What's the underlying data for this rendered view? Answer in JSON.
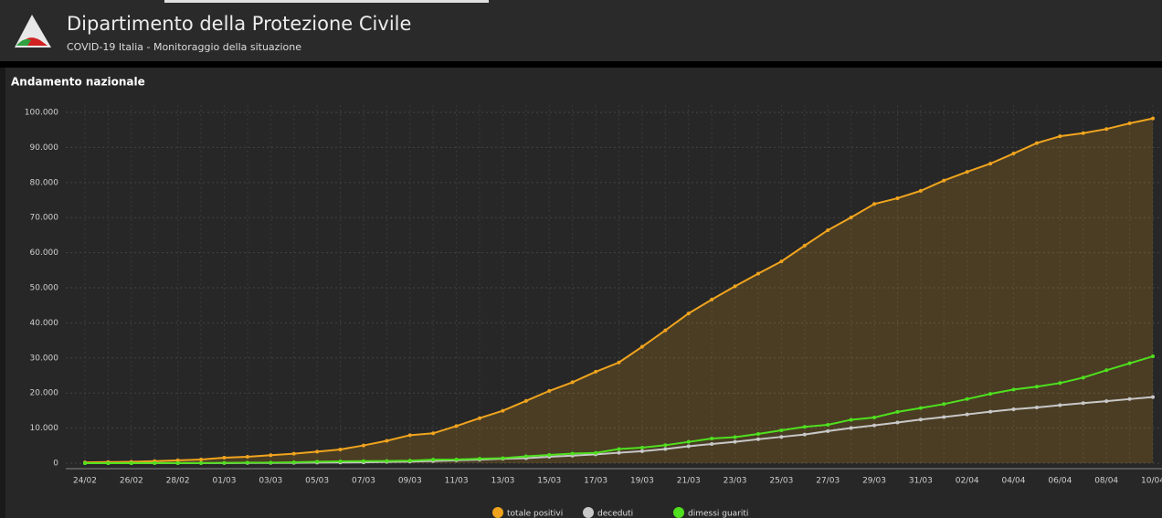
{
  "header": {
    "title": "Dipartimento della Protezione Civile",
    "subtitle": "COVID-19 Italia - Monitoraggio della situazione"
  },
  "chart_data": {
    "type": "line",
    "title": "Andamento nazionale",
    "categories": [
      "24/02",
      null,
      "26/02",
      null,
      "28/02",
      null,
      "01/03",
      null,
      "03/03",
      null,
      "05/03",
      null,
      "07/03",
      null,
      "09/03",
      null,
      "11/03",
      null,
      "13/03",
      null,
      "15/03",
      null,
      "17/03",
      null,
      "19/03",
      null,
      "21/03",
      null,
      "23/03",
      null,
      "25/03",
      null,
      "27/03",
      null,
      "29/03",
      null,
      "31/03",
      null,
      "02/04",
      null,
      "04/04",
      null,
      "06/04",
      null,
      "08/04",
      null,
      "10/04"
    ],
    "series": [
      {
        "name": "totale positivi",
        "color": "#f0a41e",
        "values": [
          221,
          311,
          385,
          588,
          821,
          1049,
          1577,
          1835,
          2263,
          2706,
          3296,
          3916,
          5061,
          6387,
          7985,
          8514,
          10590,
          12839,
          14955,
          17750,
          20603,
          23073,
          26062,
          28710,
          33190,
          37860,
          42681,
          46638,
          50418,
          54030,
          57521,
          62013,
          66414,
          70065,
          73880,
          75528,
          77635,
          80572,
          83049,
          85388,
          88274,
          91246,
          93187,
          94067,
          95262,
          96877,
          98273
        ]
      },
      {
        "name": "deceduti",
        "color": "#c8c8c8",
        "values": [
          7,
          10,
          12,
          17,
          21,
          29,
          34,
          52,
          79,
          107,
          148,
          197,
          233,
          366,
          463,
          631,
          827,
          1016,
          1266,
          1441,
          1809,
          2158,
          2503,
          2978,
          3405,
          4032,
          4825,
          5476,
          6077,
          6820,
          7503,
          8165,
          9134,
          10023,
          10779,
          11591,
          12428,
          13155,
          13915,
          14681,
          15362,
          15887,
          16523,
          17127,
          17669,
          18279,
          18849
        ]
      },
      {
        "name": "dimessi guariti",
        "color": "#4fe01e",
        "values": [
          1,
          1,
          3,
          45,
          46,
          46,
          83,
          149,
          160,
          276,
          414,
          523,
          589,
          622,
          724,
          1004,
          1045,
          1258,
          1439,
          1966,
          2335,
          2749,
          2941,
          4025,
          4440,
          5129,
          6072,
          7024,
          7432,
          8326,
          9362,
          10361,
          10950,
          12384,
          13030,
          14620,
          15729,
          16847,
          18278,
          19758,
          20996,
          21815,
          22837,
          24392,
          26491,
          28470,
          30455
        ]
      }
    ],
    "ylim": [
      0,
      100000
    ],
    "yticks": [
      0,
      {
        "value": 10000,
        "label": "10.000"
      },
      {
        "value": 20000,
        "label": "20.000"
      },
      {
        "value": 30000,
        "label": "30.000"
      },
      {
        "value": 40000,
        "label": "40.000"
      },
      {
        "value": 50000,
        "label": "50.000"
      },
      {
        "value": 60000,
        "label": "60.000"
      },
      {
        "value": 70000,
        "label": "70.000"
      },
      {
        "value": 80000,
        "label": "80.000"
      },
      {
        "value": 90000,
        "label": "90.000"
      },
      {
        "value": 100000,
        "label": "100.000"
      }
    ],
    "grid": true,
    "legend": "bottom"
  }
}
